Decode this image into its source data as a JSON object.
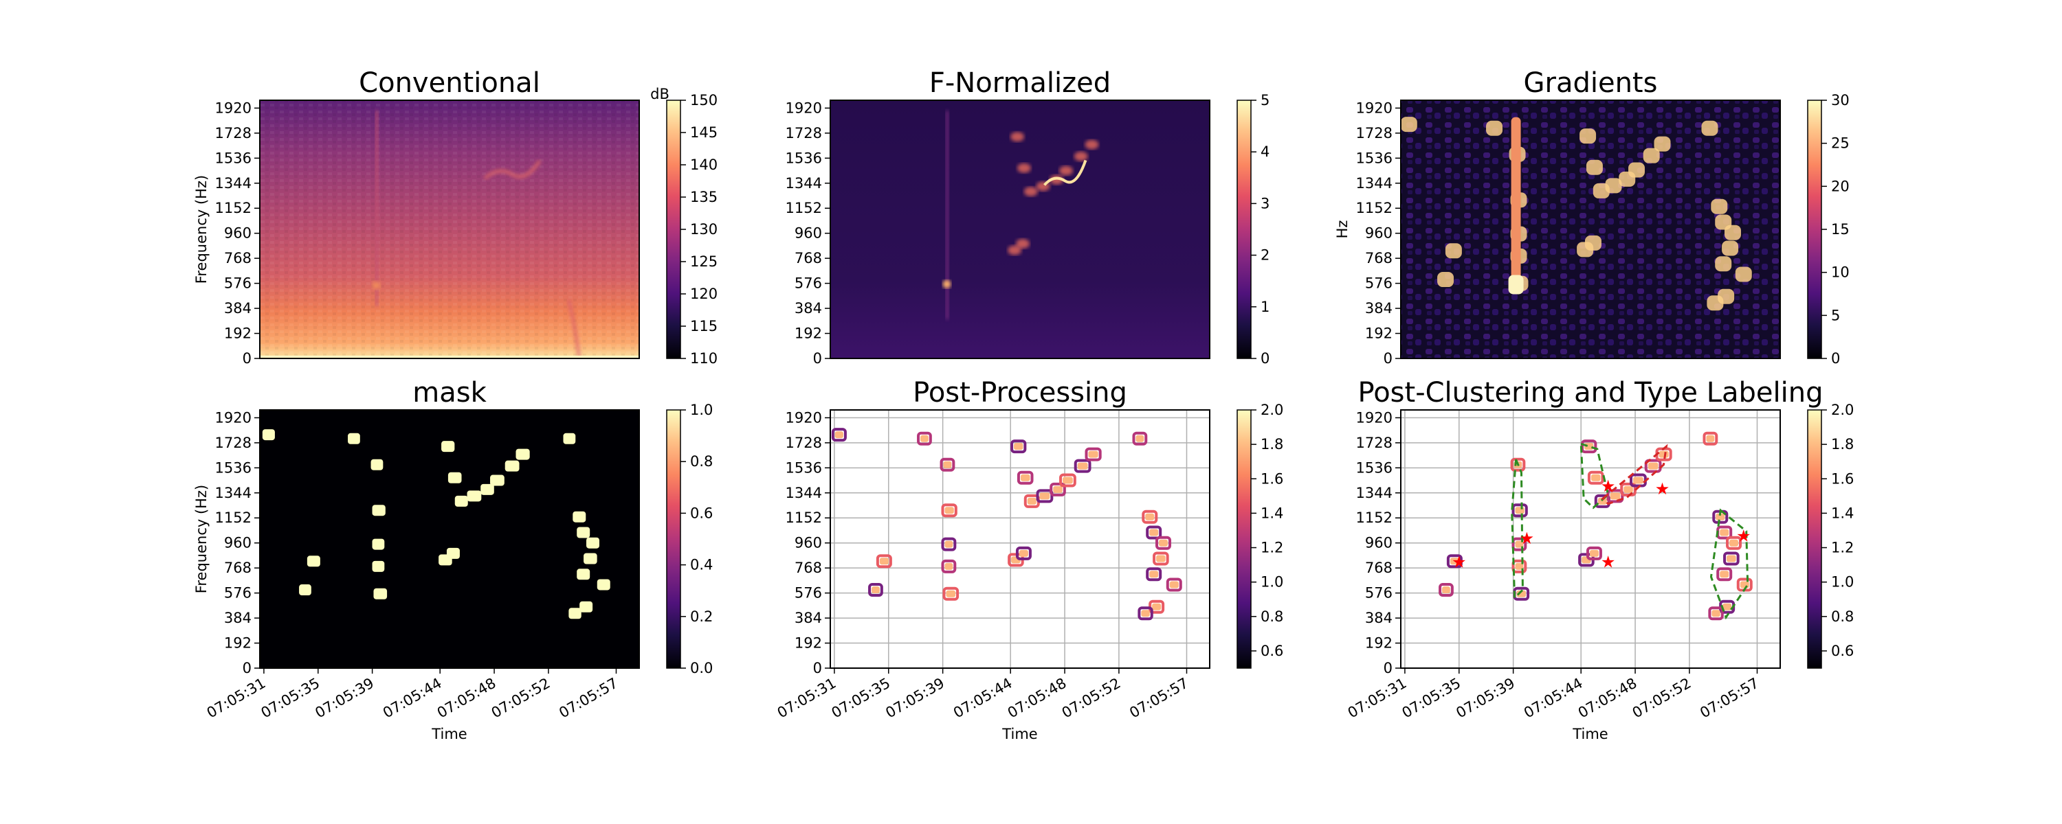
{
  "chart_data": [
    {
      "type": "heatmap",
      "title": "Conventional",
      "xlabel": "",
      "ylabel": "Frequency (Hz)",
      "yticks": [
        "0",
        "192",
        "384",
        "576",
        "768",
        "960",
        "1152",
        "1344",
        "1536",
        "1728",
        "1920"
      ],
      "xticks": [],
      "ylim": [
        0,
        1980
      ],
      "colormap": "magma",
      "colorbar": {
        "label": "dB",
        "min": 110,
        "max": 150,
        "ticks": [
          "110",
          "115",
          "120",
          "125",
          "130",
          "135",
          "140",
          "145",
          "150"
        ]
      },
      "grid": false,
      "features": [
        {
          "kind": "low-frequency energy band",
          "freq_hz": [
            0,
            400
          ],
          "level_db": 140
        },
        {
          "kind": "vertical streak",
          "time": "07:05:40",
          "freq_hz": [
            500,
            1900
          ]
        },
        {
          "kind": "tonal trace",
          "time_range": [
            "07:05:50",
            "07:05:53"
          ],
          "freq_hz": [
            1300,
            1420
          ]
        }
      ]
    },
    {
      "type": "heatmap",
      "title": "F-Normalized",
      "xlabel": "",
      "ylabel": "",
      "yticks": [
        "0",
        "192",
        "384",
        "576",
        "768",
        "960",
        "1152",
        "1344",
        "1536",
        "1728",
        "1920"
      ],
      "xticks": [],
      "ylim": [
        0,
        1980
      ],
      "colormap": "magma",
      "colorbar": {
        "label": "",
        "min": 0,
        "max": 5,
        "ticks": [
          "0",
          "1",
          "2",
          "3",
          "4",
          "5"
        ]
      },
      "grid": false
    },
    {
      "type": "heatmap",
      "title": "Gradients",
      "xlabel": "",
      "ylabel": "Hz",
      "yticks": [
        "0",
        "192",
        "384",
        "576",
        "768",
        "960",
        "1152",
        "1344",
        "1536",
        "1728",
        "1920"
      ],
      "xticks": [],
      "ylim": [
        0,
        1980
      ],
      "colormap": "magma",
      "colorbar": {
        "label": "",
        "min": 0,
        "max": 30,
        "ticks": [
          "0",
          "5",
          "10",
          "15",
          "20",
          "25",
          "30"
        ]
      },
      "grid": false
    },
    {
      "type": "heatmap",
      "title": "mask",
      "xlabel": "Time",
      "ylabel": "Frequency (Hz)",
      "yticks": [
        "0",
        "192",
        "384",
        "576",
        "768",
        "960",
        "1152",
        "1344",
        "1536",
        "1728",
        "1920"
      ],
      "xticks": [
        "07:05:31",
        "07:05:35",
        "07:05:39",
        "07:05:44",
        "07:05:48",
        "07:05:52",
        "07:05:57"
      ],
      "ylim": [
        0,
        1980
      ],
      "colormap": "magma",
      "colorbar": {
        "label": "",
        "min": 0.0,
        "max": 1.0,
        "ticks": [
          "0.0",
          "0.2",
          "0.4",
          "0.6",
          "0.8",
          "1.0"
        ]
      },
      "grid": false
    },
    {
      "type": "heatmap",
      "title": "Post-Processing",
      "xlabel": "Time",
      "ylabel": "",
      "yticks": [
        "0",
        "192",
        "384",
        "576",
        "768",
        "960",
        "1152",
        "1344",
        "1536",
        "1728",
        "1920"
      ],
      "xticks": [
        "07:05:31",
        "07:05:35",
        "07:05:39",
        "07:05:44",
        "07:05:48",
        "07:05:52",
        "07:05:57"
      ],
      "ylim": [
        0,
        1980
      ],
      "colormap": "magma",
      "colorbar": {
        "label": "",
        "min": 0.5,
        "max": 2.0,
        "ticks": [
          "0.6",
          "0.8",
          "1.0",
          "1.2",
          "1.4",
          "1.6",
          "1.8",
          "2.0"
        ]
      },
      "grid": true
    },
    {
      "type": "heatmap",
      "title": "Post-Clustering and Type Labeling",
      "xlabel": "Time",
      "ylabel": "",
      "yticks": [
        "0",
        "192",
        "384",
        "576",
        "768",
        "960",
        "1152",
        "1344",
        "1536",
        "1728",
        "1920"
      ],
      "xticks": [
        "07:05:31",
        "07:05:35",
        "07:05:39",
        "07:05:44",
        "07:05:48",
        "07:05:52",
        "07:05:57"
      ],
      "ylim": [
        0,
        1980
      ],
      "colormap": "magma",
      "colorbar": {
        "label": "",
        "min": 0.5,
        "max": 2.0,
        "ticks": [
          "0.6",
          "0.8",
          "1.0",
          "1.2",
          "1.4",
          "1.6",
          "1.8",
          "2.0"
        ]
      },
      "grid": true,
      "clusters": [
        {
          "time": "07:05:35",
          "freq_hz": 820,
          "hull": "none"
        },
        {
          "time": "07:05:40",
          "freq_hz": 1000,
          "hull": "green-dashed"
        },
        {
          "time": "07:05:46",
          "freq_hz": 820,
          "hull": "none"
        },
        {
          "time": "07:05:46",
          "freq_hz": 1400,
          "hull": "green-dashed"
        },
        {
          "time": "07:05:50",
          "freq_hz": 1380,
          "hull": "red-dashed"
        },
        {
          "time": "07:05:56",
          "freq_hz": 1020,
          "hull": "green-dashed"
        }
      ],
      "marker_color": "#ff0000"
    }
  ]
}
